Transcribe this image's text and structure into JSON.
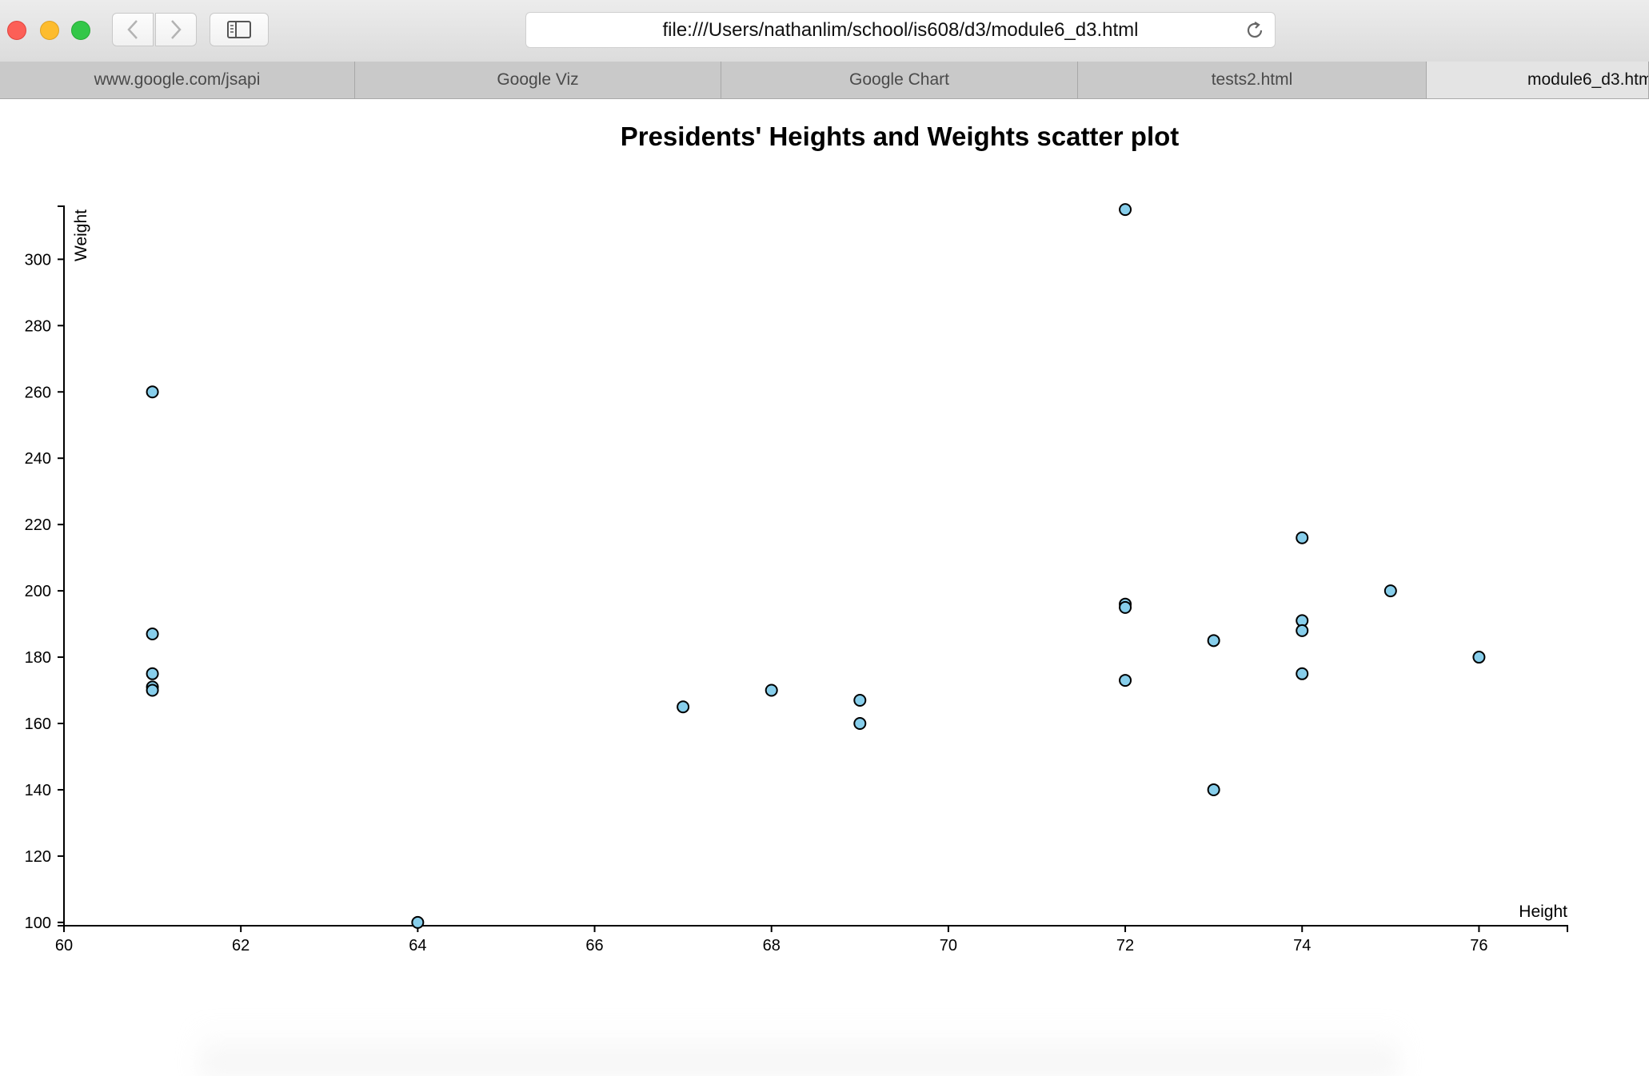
{
  "browser": {
    "url": "file:///Users/nathanlim/school/is608/d3/module6_d3.html",
    "tabs": [
      {
        "label": "www.google.com/jsapi",
        "active": false
      },
      {
        "label": "Google Viz",
        "active": false
      },
      {
        "label": "Google Chart",
        "active": false
      },
      {
        "label": "tests2.html",
        "active": false
      },
      {
        "label": "module6_d3.html",
        "active": true
      }
    ],
    "icons": {
      "close": "close-window-icon",
      "minimize": "minimize-window-icon",
      "maximize": "zoom-window-icon",
      "back": "chevron-left-icon",
      "forward": "chevron-right-icon",
      "sidebar": "sidebar-icon",
      "reload": "reload-icon"
    }
  },
  "chart_data": {
    "type": "scatter",
    "title": "Presidents' Heights and Weights scatter plot",
    "xlabel": "Height",
    "ylabel": "Weight",
    "xlim": [
      60,
      77
    ],
    "ylim": [
      99,
      316
    ],
    "xticks": [
      60,
      62,
      64,
      66,
      68,
      70,
      72,
      74,
      76
    ],
    "yticks": [
      100,
      120,
      140,
      160,
      180,
      200,
      220,
      240,
      260,
      280,
      300
    ],
    "grid": false,
    "point_color": "#87ceeb",
    "points": [
      {
        "x": 61,
        "y": 260
      },
      {
        "x": 61,
        "y": 187
      },
      {
        "x": 61,
        "y": 175
      },
      {
        "x": 61,
        "y": 171
      },
      {
        "x": 61,
        "y": 170
      },
      {
        "x": 64,
        "y": 100
      },
      {
        "x": 67,
        "y": 165
      },
      {
        "x": 68,
        "y": 170
      },
      {
        "x": 69,
        "y": 167
      },
      {
        "x": 69,
        "y": 160
      },
      {
        "x": 72,
        "y": 315
      },
      {
        "x": 72,
        "y": 196
      },
      {
        "x": 72,
        "y": 195
      },
      {
        "x": 72,
        "y": 173
      },
      {
        "x": 73,
        "y": 185
      },
      {
        "x": 73,
        "y": 140
      },
      {
        "x": 74,
        "y": 216
      },
      {
        "x": 74,
        "y": 191
      },
      {
        "x": 74,
        "y": 188
      },
      {
        "x": 74,
        "y": 175
      },
      {
        "x": 75,
        "y": 200
      },
      {
        "x": 76,
        "y": 180
      }
    ]
  }
}
